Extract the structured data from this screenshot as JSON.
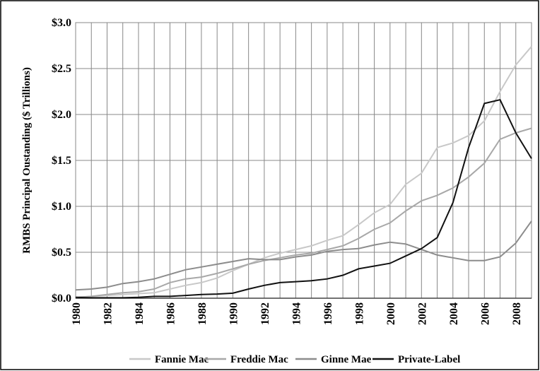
{
  "chart_data": {
    "type": "line",
    "y_axis_label": "RMBS Principal Oustanding ($ Trillions)",
    "x": [
      1980,
      1981,
      1982,
      1983,
      1984,
      1985,
      1986,
      1987,
      1988,
      1989,
      1990,
      1991,
      1992,
      1993,
      1994,
      1995,
      1996,
      1997,
      1998,
      1999,
      2000,
      2001,
      2002,
      2003,
      2004,
      2005,
      2006,
      2007,
      2008,
      2009
    ],
    "series": [
      {
        "name": "Fannie Mae",
        "color": "#c8c8c8",
        "values": [
          0.01,
          0.02,
          0.03,
          0.04,
          0.05,
          0.06,
          0.1,
          0.14,
          0.17,
          0.22,
          0.3,
          0.37,
          0.44,
          0.49,
          0.53,
          0.57,
          0.63,
          0.68,
          0.8,
          0.93,
          1.02,
          1.24,
          1.36,
          1.64,
          1.69,
          1.77,
          1.93,
          2.25,
          2.54,
          2.74
        ]
      },
      {
        "name": "Freddie Mac",
        "color": "#a8a8a8",
        "values": [
          0.01,
          0.02,
          0.04,
          0.06,
          0.07,
          0.1,
          0.17,
          0.21,
          0.23,
          0.27,
          0.32,
          0.37,
          0.41,
          0.44,
          0.47,
          0.49,
          0.53,
          0.57,
          0.65,
          0.75,
          0.82,
          0.95,
          1.06,
          1.12,
          1.2,
          1.32,
          1.47,
          1.73,
          1.8,
          1.85
        ]
      },
      {
        "name": "Ginne Mae",
        "color": "#8c8c8c",
        "values": [
          0.09,
          0.1,
          0.12,
          0.16,
          0.18,
          0.21,
          0.26,
          0.31,
          0.34,
          0.37,
          0.4,
          0.43,
          0.42,
          0.42,
          0.45,
          0.47,
          0.51,
          0.53,
          0.54,
          0.58,
          0.61,
          0.59,
          0.53,
          0.47,
          0.44,
          0.41,
          0.41,
          0.45,
          0.6,
          0.84
        ]
      },
      {
        "name": "Private-Label",
        "color": "#111111",
        "values": [
          0.01,
          0.005,
          0.005,
          0.005,
          0.01,
          0.02,
          0.02,
          0.03,
          0.04,
          0.045,
          0.055,
          0.1,
          0.14,
          0.17,
          0.18,
          0.19,
          0.21,
          0.25,
          0.32,
          0.35,
          0.38,
          0.46,
          0.54,
          0.66,
          1.04,
          1.64,
          2.12,
          2.16,
          1.8,
          1.52
        ]
      }
    ],
    "xlim": [
      1980,
      2009
    ],
    "xticks": [
      1980,
      1982,
      1984,
      1986,
      1988,
      1990,
      1992,
      1994,
      1996,
      1998,
      2000,
      2002,
      2004,
      2006,
      2008
    ],
    "xminor_ticks": [
      1981,
      1983,
      1985,
      1987,
      1989,
      1991,
      1993,
      1995,
      1997,
      1999,
      2001,
      2003,
      2005,
      2007
    ],
    "ylim": [
      0,
      3
    ],
    "yticks": [
      {
        "value": 0,
        "label": "$0.0"
      },
      {
        "value": 0.5,
        "label": "$0.5"
      },
      {
        "value": 1,
        "label": "$1.0"
      },
      {
        "value": 1.5,
        "label": "$1.5"
      },
      {
        "value": 2,
        "label": "$2.0"
      },
      {
        "value": 2.5,
        "label": "$2.5"
      },
      {
        "value": 3,
        "label": "$3.0"
      }
    ],
    "grid": true,
    "legend": "bottom"
  }
}
